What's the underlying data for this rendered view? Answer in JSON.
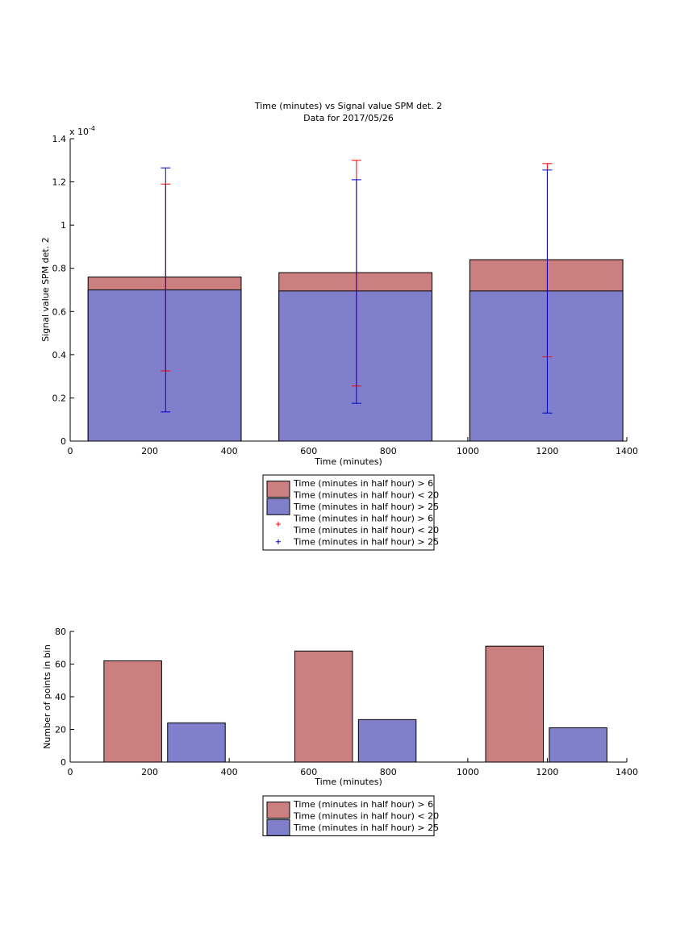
{
  "colors": {
    "red_series": "#cc7f7f",
    "blue_series": "#7f7fcc",
    "red_marker": "#ff0000",
    "blue_marker": "#0000cc",
    "axis": "#000000"
  },
  "chart_data": [
    {
      "type": "bar",
      "title": "Time (minutes) vs Signal value SPM det. 2",
      "subtitle": "Data for 2017/05/26",
      "xlabel": "Time (minutes)",
      "ylabel": "Signal value SPM det. 2",
      "y_exponent_label": "x 10",
      "y_exponent_power": "-4",
      "xlim": [
        0,
        1400
      ],
      "ylim": [
        0,
        1.4
      ],
      "x_ticks": [
        0,
        200,
        400,
        600,
        800,
        1000,
        1200,
        1400
      ],
      "y_ticks": [
        0,
        0.2,
        0.4,
        0.6,
        0.8,
        1,
        1.2,
        1.4
      ],
      "x_tick_labels": [
        "0",
        "200",
        "400",
        "600",
        "800",
        "1000",
        "1200",
        "1400"
      ],
      "y_tick_labels": [
        "0",
        "0.2",
        "0.4",
        "0.6",
        "0.8",
        "1",
        "1.2",
        "1.4"
      ],
      "bars": [
        {
          "x_start": 45,
          "x_end": 430,
          "red": 0.76,
          "blue": 0.7
        },
        {
          "x_start": 525,
          "x_end": 910,
          "red": 0.78,
          "blue": 0.695
        },
        {
          "x_start": 1005,
          "x_end": 1390,
          "red": 0.84,
          "blue": 0.695
        }
      ],
      "error_bars": [
        {
          "x": 240,
          "red_low": 0.325,
          "red_high": 1.19,
          "blue_low": 0.135,
          "blue_high": 1.265
        },
        {
          "x": 720,
          "red_low": 0.255,
          "red_high": 1.3,
          "blue_low": 0.175,
          "blue_high": 1.21
        },
        {
          "x": 1200,
          "red_low": 0.39,
          "red_high": 1.285,
          "blue_low": 0.13,
          "blue_high": 1.255
        }
      ],
      "legend": {
        "placement": "below",
        "entries": [
          {
            "kind": "patch",
            "color_key": "red_series",
            "lines": [
              "Time (minutes in half hour) > 6",
              "Time (minutes in half hour) < 20"
            ]
          },
          {
            "kind": "patch",
            "color_key": "blue_series",
            "lines": [
              "Time (minutes in half hour) > 25"
            ]
          },
          {
            "kind": "marker",
            "color_key": "red_marker",
            "lines": [
              "Time (minutes in half hour) > 6",
              "Time (minutes in half hour) < 20"
            ]
          },
          {
            "kind": "marker",
            "color_key": "blue_marker",
            "lines": [
              "Time (minutes in half hour) > 25"
            ]
          }
        ]
      }
    },
    {
      "type": "bar",
      "xlabel": "Time (minutes)",
      "ylabel": "Number of points in bin",
      "xlim": [
        0,
        1400
      ],
      "ylim": [
        0,
        80
      ],
      "x_ticks": [
        0,
        200,
        400,
        600,
        800,
        1000,
        1200,
        1400
      ],
      "y_ticks": [
        0,
        20,
        40,
        60,
        80
      ],
      "x_tick_labels": [
        "0",
        "200",
        "400",
        "600",
        "800",
        "1000",
        "1200",
        "1400"
      ],
      "y_tick_labels": [
        "0",
        "20",
        "40",
        "60",
        "80"
      ],
      "series": [
        {
          "color_key": "red_series",
          "bars": [
            {
              "x_start": 85,
              "x_end": 230,
              "value": 62
            },
            {
              "x_start": 565,
              "x_end": 710,
              "value": 68
            },
            {
              "x_start": 1045,
              "x_end": 1190,
              "value": 71
            }
          ]
        },
        {
          "color_key": "blue_series",
          "bars": [
            {
              "x_start": 245,
              "x_end": 390,
              "value": 24
            },
            {
              "x_start": 725,
              "x_end": 870,
              "value": 26
            },
            {
              "x_start": 1205,
              "x_end": 1350,
              "value": 21
            }
          ]
        }
      ],
      "legend": {
        "placement": "below",
        "entries": [
          {
            "kind": "patch",
            "color_key": "red_series",
            "lines": [
              "Time (minutes in half hour) > 6",
              "Time (minutes in half hour) < 20"
            ]
          },
          {
            "kind": "patch",
            "color_key": "blue_series",
            "lines": [
              "Time (minutes in half hour) > 25"
            ]
          }
        ]
      }
    }
  ]
}
